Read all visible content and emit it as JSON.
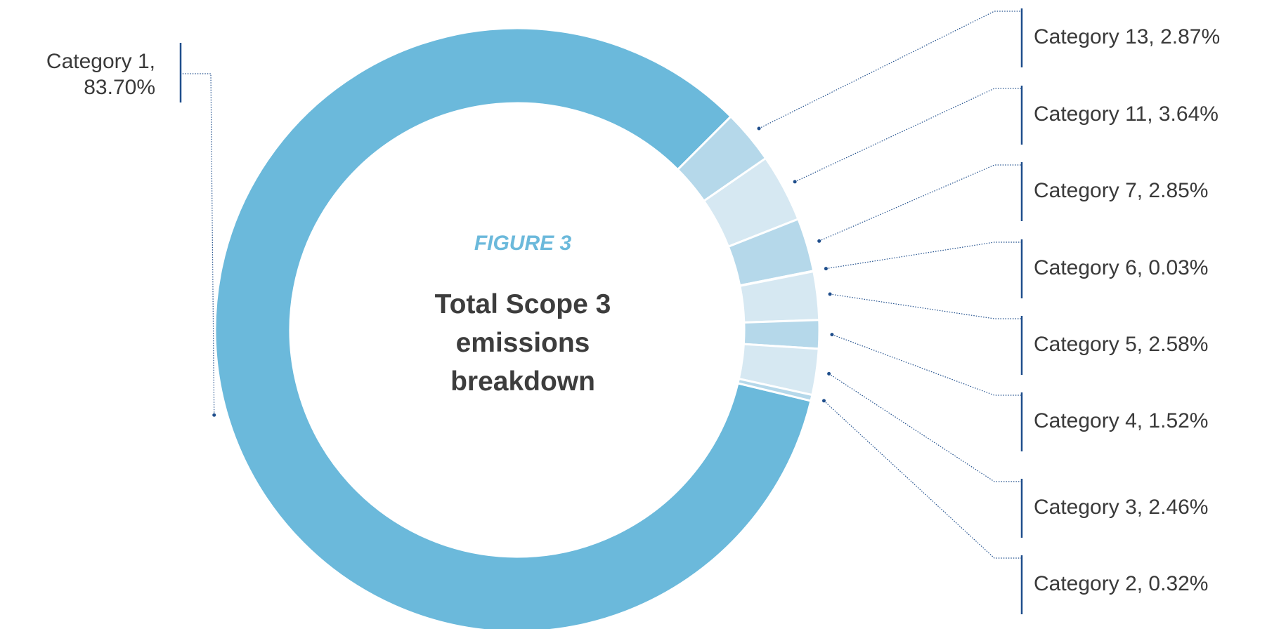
{
  "chart_data": {
    "type": "donut",
    "subtitle": "FIGURE 3",
    "title": "Total Scope 3 emissions breakdown",
    "labels": [
      "Category 1, 83.70%",
      "Category 13, 2.87%",
      "Category 11, 3.64%",
      "Category 7, 2.85%",
      "Category 6, 0.03%",
      "Category 5, 2.58%",
      "Category 4, 1.52%",
      "Category 3, 2.46%",
      "Category 2, 0.32%"
    ],
    "values": [
      83.7,
      2.87,
      3.64,
      2.85,
      0.03,
      2.58,
      1.52,
      2.46,
      0.32
    ],
    "colors": [
      "#6bb9db",
      "#b5d8ea",
      "#d6e8f2",
      "#b5d8ea",
      "#d6e8f2",
      "#d6e8f2",
      "#b5d8ea",
      "#d6e8f2",
      "#b5d8ea"
    ]
  }
}
